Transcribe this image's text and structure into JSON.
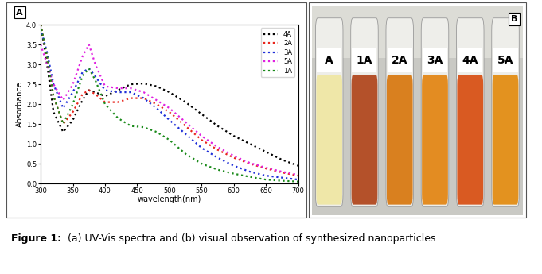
{
  "chart_data": {
    "type": "line",
    "xlabel": "wavelength(nm)",
    "ylabel": "Absorbance",
    "x": [
      300,
      310,
      320,
      335,
      350,
      365,
      375,
      385,
      400,
      420,
      440,
      460,
      480,
      500,
      525,
      550,
      575,
      600,
      625,
      650,
      675,
      700
    ],
    "series": [
      {
        "name": "4A",
        "color": "#000000",
        "line_style": "dotted",
        "values": [
          4.0,
          3.0,
          1.8,
          1.3,
          1.6,
          2.1,
          2.35,
          2.3,
          2.2,
          2.35,
          2.5,
          2.52,
          2.45,
          2.3,
          2.05,
          1.75,
          1.45,
          1.2,
          1.0,
          0.8,
          0.6,
          0.45
        ]
      },
      {
        "name": "2A",
        "color": "#e8251c",
        "line_style": "dotted",
        "values": [
          4.0,
          3.2,
          2.2,
          1.5,
          1.8,
          2.25,
          2.35,
          2.25,
          2.05,
          2.05,
          2.15,
          2.15,
          2.0,
          1.8,
          1.45,
          1.1,
          0.85,
          0.65,
          0.5,
          0.38,
          0.28,
          0.2
        ]
      },
      {
        "name": "3A",
        "color": "#1f2fd8",
        "line_style": "dotted",
        "values": [
          3.9,
          3.3,
          2.5,
          1.9,
          2.3,
          2.8,
          2.9,
          2.7,
          2.35,
          2.3,
          2.3,
          2.15,
          1.9,
          1.6,
          1.25,
          0.9,
          0.65,
          0.45,
          0.3,
          0.2,
          0.15,
          0.1
        ]
      },
      {
        "name": "5A",
        "color": "#e020e0",
        "line_style": "dotted",
        "values": [
          3.5,
          3.0,
          2.5,
          2.1,
          2.5,
          3.2,
          3.5,
          3.0,
          2.45,
          2.4,
          2.4,
          2.3,
          2.1,
          1.9,
          1.55,
          1.2,
          0.92,
          0.7,
          0.52,
          0.4,
          0.3,
          0.22
        ]
      },
      {
        "name": "1A",
        "color": "#1a8a1a",
        "line_style": "dotted",
        "values": [
          4.0,
          3.2,
          2.2,
          1.5,
          2.0,
          2.7,
          2.9,
          2.6,
          2.0,
          1.65,
          1.45,
          1.42,
          1.3,
          1.1,
          0.75,
          0.5,
          0.35,
          0.25,
          0.17,
          0.1,
          0.07,
          0.05
        ]
      }
    ],
    "xlim": [
      300,
      700
    ],
    "xticks": [
      300,
      350,
      400,
      450,
      500,
      550,
      600,
      650,
      700
    ],
    "ylim": [
      0.0,
      4.0
    ],
    "yticks": [
      0.0,
      0.5,
      1.0,
      1.5,
      2.0,
      2.5,
      3.0,
      3.5,
      4.0
    ],
    "legend": "upper right"
  },
  "panel_labels": [
    "A",
    "B"
  ],
  "photo": {
    "vials": [
      {
        "label": "A",
        "color": "#efe7a8"
      },
      {
        "label": "1A",
        "color": "#b4512a"
      },
      {
        "label": "2A",
        "color": "#d9801f"
      },
      {
        "label": "3A",
        "color": "#e38c22"
      },
      {
        "label": "4A",
        "color": "#d95a22"
      },
      {
        "label": "5A",
        "color": "#e3921f"
      }
    ]
  },
  "caption": {
    "label": "Figure 1:",
    "text": "(a) UV-Vis spectra and (b) visual observation of synthesized nanoparticles."
  }
}
